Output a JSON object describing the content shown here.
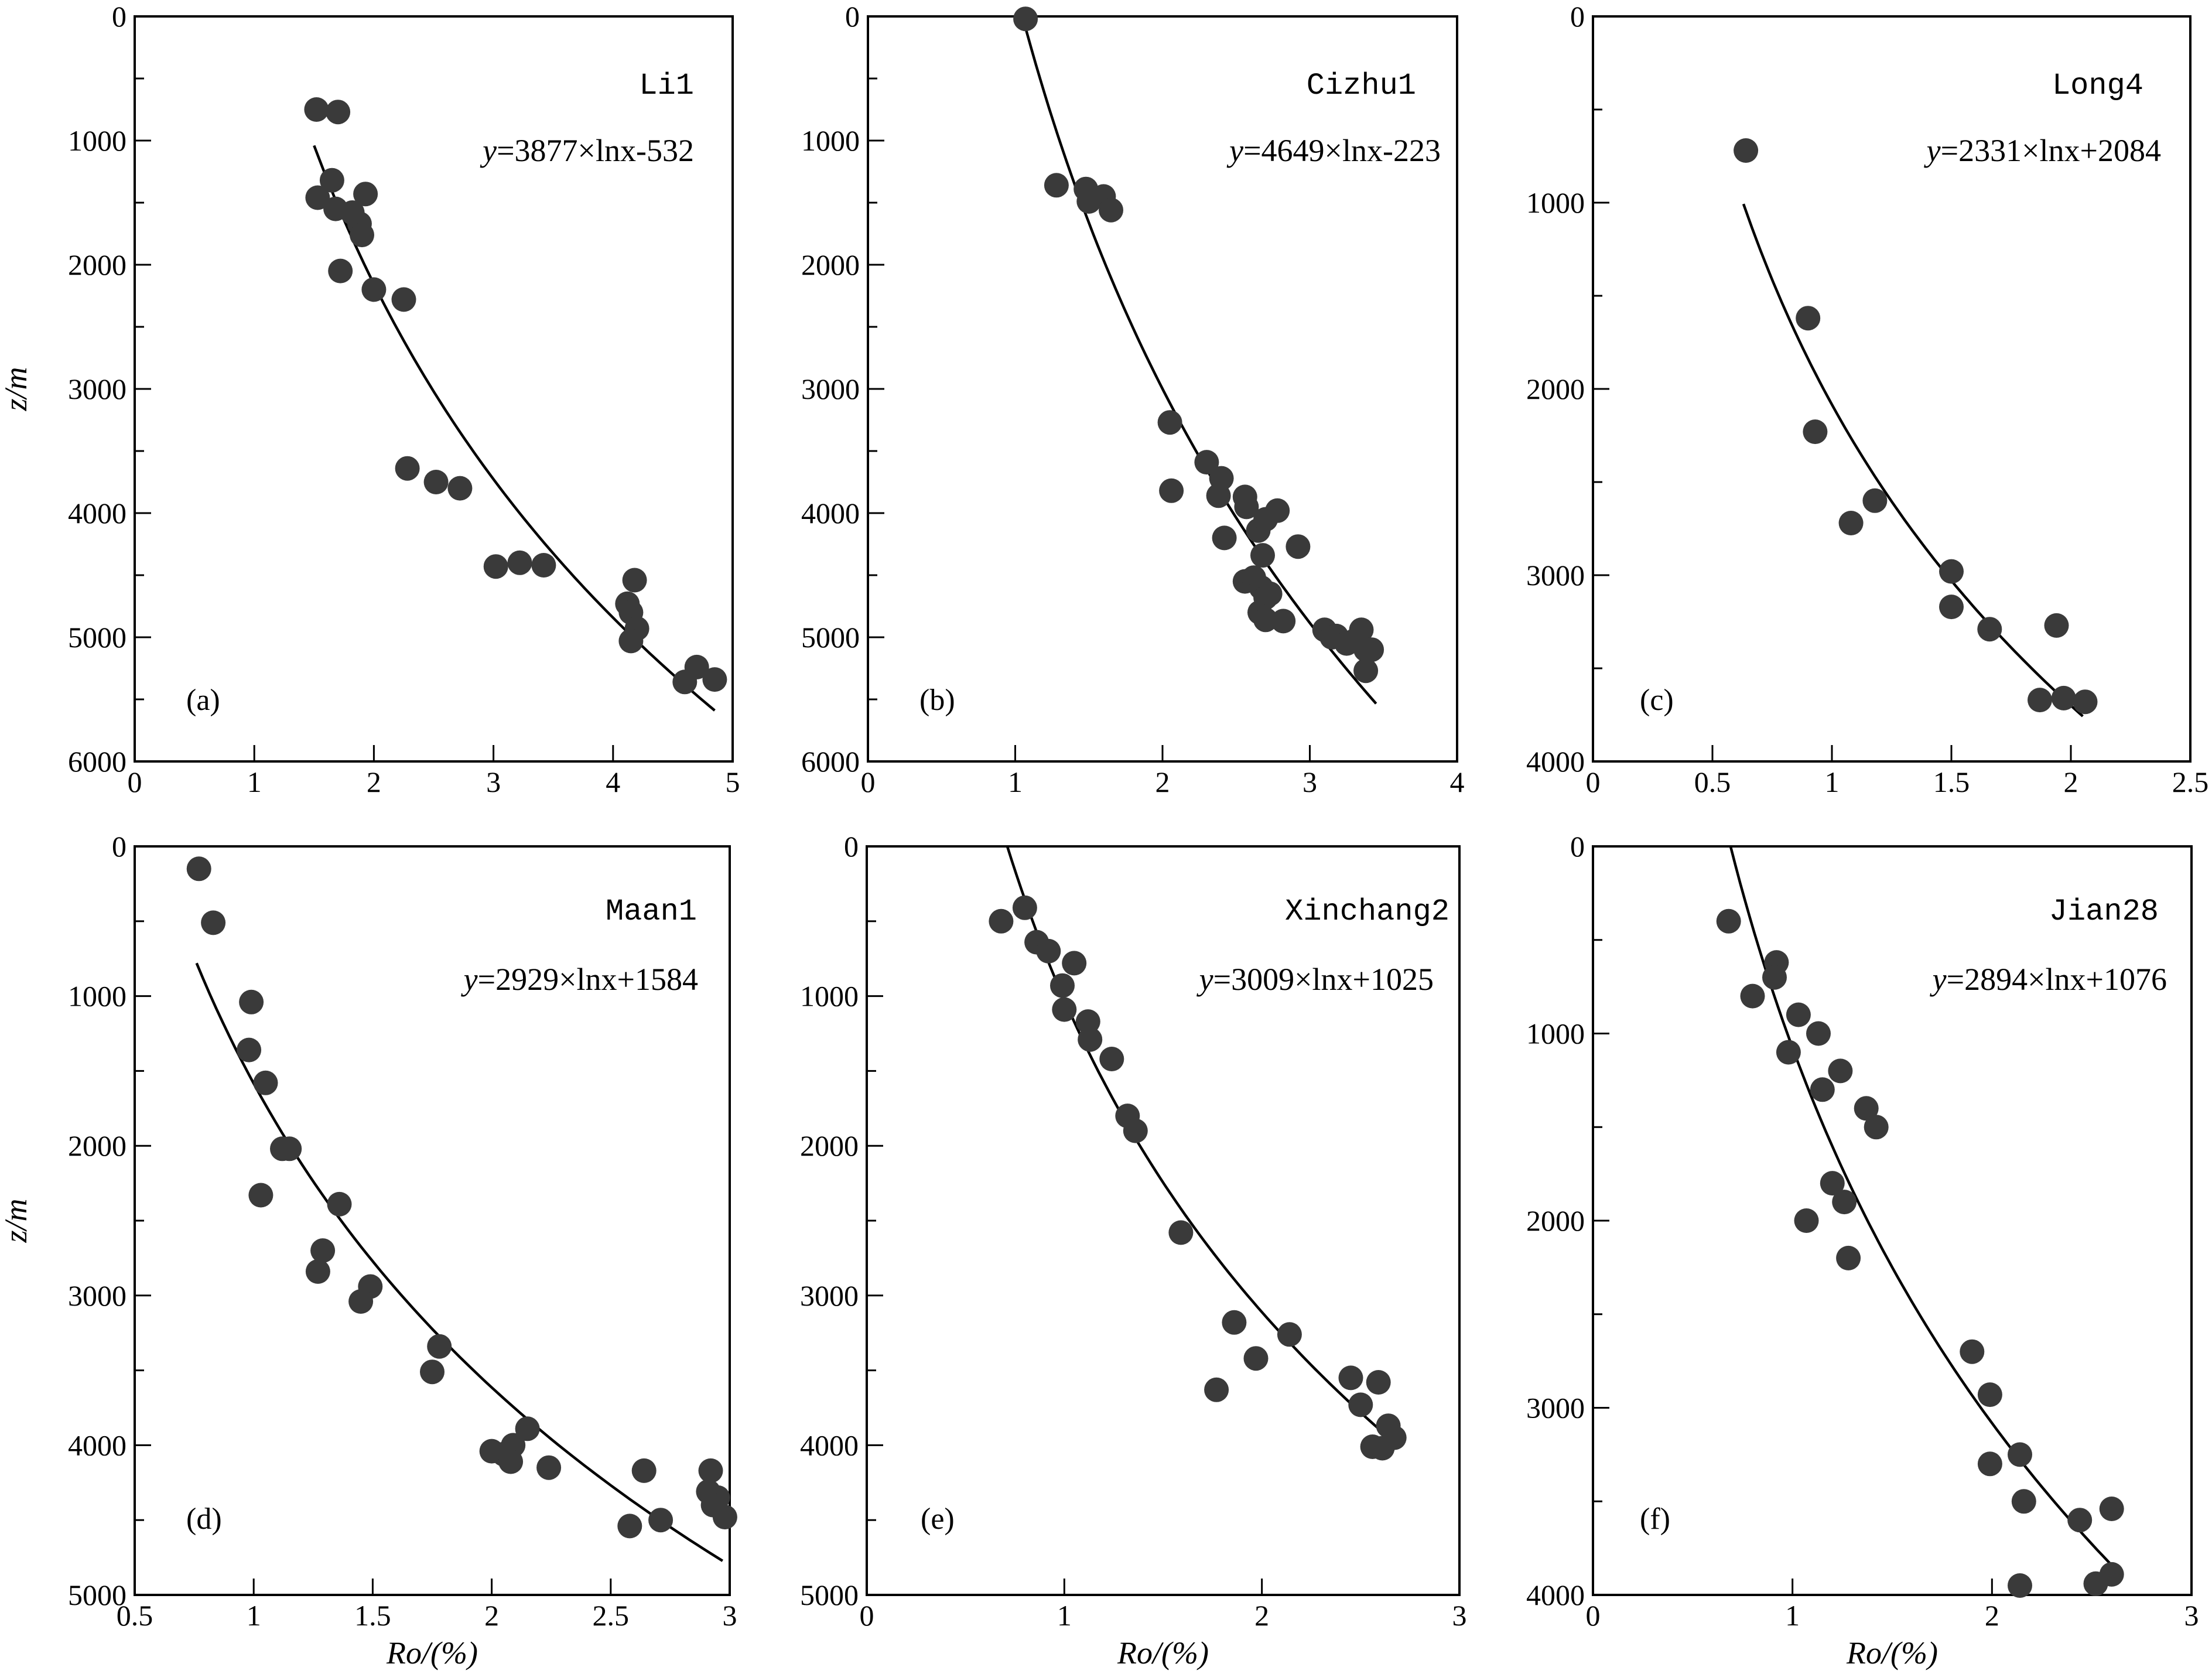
{
  "figure": {
    "x_title": "Ro/(%)",
    "y_title": "z/m"
  },
  "chart_data": [
    {
      "type": "scatter",
      "panel_label": "(a)",
      "well": "Li1",
      "equation": {
        "prefix": "y",
        "text": "=3877×lnx-532"
      },
      "fit": {
        "a": 3877,
        "b": -532,
        "xrange": [
          1.5,
          4.85
        ]
      },
      "xlim": [
        0,
        5
      ],
      "ylim": [
        0,
        6000
      ],
      "xticks": [
        0,
        1,
        2,
        3,
        4,
        5
      ],
      "xtick_labels": [
        "0",
        "1",
        "2",
        "3",
        "4",
        "5"
      ],
      "yticks": [
        0,
        1000,
        2000,
        3000,
        4000,
        5000,
        6000
      ],
      "ytick_labels": [
        "0",
        "1000",
        "2000",
        "3000",
        "4000",
        "5000",
        "6000"
      ],
      "y_minor": 500,
      "xlabel": "",
      "ylabel": "z/m",
      "points": [
        [
          1.52,
          750
        ],
        [
          1.7,
          770
        ],
        [
          1.65,
          1320
        ],
        [
          1.53,
          1460
        ],
        [
          1.68,
          1550
        ],
        [
          1.82,
          1580
        ],
        [
          1.93,
          1430
        ],
        [
          1.88,
          1670
        ],
        [
          1.9,
          1760
        ],
        [
          1.72,
          2050
        ],
        [
          2.0,
          2200
        ],
        [
          2.25,
          2280
        ],
        [
          2.28,
          3640
        ],
        [
          2.52,
          3750
        ],
        [
          2.72,
          3800
        ],
        [
          3.02,
          4430
        ],
        [
          3.22,
          4400
        ],
        [
          3.42,
          4420
        ],
        [
          4.18,
          4540
        ],
        [
          4.12,
          4730
        ],
        [
          4.15,
          4800
        ],
        [
          4.2,
          4930
        ],
        [
          4.15,
          5030
        ],
        [
          4.6,
          5360
        ],
        [
          4.7,
          5240
        ],
        [
          4.85,
          5340
        ]
      ]
    },
    {
      "type": "scatter",
      "panel_label": "(b)",
      "well": "Cizhu1",
      "equation": {
        "prefix": "y",
        "text": "=4649×lnx-223"
      },
      "fit": {
        "a": 4649,
        "b": -223,
        "xrange": [
          1.05,
          3.45
        ]
      },
      "xlim": [
        0,
        4
      ],
      "ylim": [
        0,
        6000
      ],
      "xticks": [
        0,
        1,
        2,
        3,
        4
      ],
      "xtick_labels": [
        "0",
        "1",
        "2",
        "3",
        "4"
      ],
      "yticks": [
        0,
        1000,
        2000,
        3000,
        4000,
        5000,
        6000
      ],
      "ytick_labels": [
        "0",
        "1000",
        "2000",
        "3000",
        "4000",
        "5000",
        "6000"
      ],
      "y_minor": 500,
      "xlabel": "",
      "ylabel": "",
      "points": [
        [
          1.07,
          20
        ],
        [
          1.28,
          1360
        ],
        [
          1.48,
          1390
        ],
        [
          1.5,
          1490
        ],
        [
          1.6,
          1450
        ],
        [
          1.65,
          1560
        ],
        [
          2.05,
          3270
        ],
        [
          2.06,
          3820
        ],
        [
          2.3,
          3590
        ],
        [
          2.38,
          3860
        ],
        [
          2.4,
          3720
        ],
        [
          2.42,
          4200
        ],
        [
          2.56,
          3870
        ],
        [
          2.57,
          3950
        ],
        [
          2.56,
          4550
        ],
        [
          2.62,
          4520
        ],
        [
          2.65,
          4140
        ],
        [
          2.68,
          4340
        ],
        [
          2.7,
          4050
        ],
        [
          2.67,
          4600
        ],
        [
          2.7,
          4680
        ],
        [
          2.66,
          4800
        ],
        [
          2.7,
          4860
        ],
        [
          2.73,
          4650
        ],
        [
          2.78,
          3980
        ],
        [
          2.82,
          4870
        ],
        [
          2.92,
          4270
        ],
        [
          3.1,
          4940
        ],
        [
          3.15,
          5000
        ],
        [
          3.18,
          4990
        ],
        [
          3.25,
          5050
        ],
        [
          3.3,
          5030
        ],
        [
          3.35,
          4940
        ],
        [
          3.38,
          5100
        ],
        [
          3.42,
          5100
        ],
        [
          3.38,
          5270
        ]
      ]
    },
    {
      "type": "scatter",
      "panel_label": "(c)",
      "well": "Long4",
      "equation": {
        "prefix": "y",
        "text": "=2331×lnx+2084"
      },
      "fit": {
        "a": 2331,
        "b": 2084,
        "xrange": [
          0.63,
          2.05
        ]
      },
      "xlim": [
        0,
        2.5
      ],
      "ylim": [
        0,
        4000
      ],
      "xticks": [
        0,
        0.5,
        1,
        1.5,
        2,
        2.5
      ],
      "xtick_labels": [
        "0",
        "0.5",
        "1",
        "1.5",
        "2",
        "2.5"
      ],
      "yticks": [
        0,
        1000,
        2000,
        3000,
        4000
      ],
      "ytick_labels": [
        "0",
        "1000",
        "2000",
        "3000",
        "4000"
      ],
      "y_minor": 500,
      "xlabel": "",
      "ylabel": "",
      "points": [
        [
          0.64,
          720
        ],
        [
          0.9,
          1620
        ],
        [
          0.93,
          2230
        ],
        [
          1.08,
          2720
        ],
        [
          1.18,
          2600
        ],
        [
          1.5,
          2980
        ],
        [
          1.5,
          3170
        ],
        [
          1.66,
          3290
        ],
        [
          1.94,
          3270
        ],
        [
          1.87,
          3670
        ],
        [
          1.97,
          3660
        ],
        [
          2.06,
          3680
        ]
      ]
    },
    {
      "type": "scatter",
      "panel_label": "(d)",
      "well": "Maan1",
      "equation": {
        "prefix": "y",
        "text": "=2929×lnx+1584"
      },
      "fit": {
        "a": 2929,
        "b": 1584,
        "xrange": [
          0.76,
          2.97
        ]
      },
      "xlim": [
        0.5,
        3
      ],
      "ylim": [
        0,
        5000
      ],
      "xticks": [
        0.5,
        1,
        1.5,
        2,
        2.5,
        3
      ],
      "xtick_labels": [
        "0.5",
        "1",
        "1.5",
        "2",
        "2.5",
        "3"
      ],
      "yticks": [
        0,
        1000,
        2000,
        3000,
        4000,
        5000
      ],
      "ytick_labels": [
        "0",
        "1000",
        "2000",
        "3000",
        "4000",
        "5000"
      ],
      "y_minor": 500,
      "xlabel": "Ro/(%)",
      "ylabel": "z/m",
      "points": [
        [
          0.77,
          150
        ],
        [
          0.83,
          510
        ],
        [
          0.99,
          1040
        ],
        [
          0.98,
          1360
        ],
        [
          1.05,
          1580
        ],
        [
          1.12,
          2020
        ],
        [
          1.15,
          2020
        ],
        [
          1.03,
          2330
        ],
        [
          1.36,
          2390
        ],
        [
          1.29,
          2700
        ],
        [
          1.27,
          2840
        ],
        [
          1.49,
          2940
        ],
        [
          1.45,
          3040
        ],
        [
          1.78,
          3340
        ],
        [
          1.75,
          3510
        ],
        [
          2.0,
          4040
        ],
        [
          2.05,
          4060
        ],
        [
          2.09,
          4000
        ],
        [
          2.15,
          3890
        ],
        [
          2.08,
          4110
        ],
        [
          2.24,
          4150
        ],
        [
          2.64,
          4170
        ],
        [
          2.92,
          4170
        ],
        [
          2.58,
          4540
        ],
        [
          2.71,
          4500
        ],
        [
          2.91,
          4310
        ],
        [
          2.95,
          4350
        ],
        [
          2.93,
          4400
        ],
        [
          2.98,
          4480
        ]
      ]
    },
    {
      "type": "scatter",
      "panel_label": "(e)",
      "well": "Xinchang2",
      "equation": {
        "prefix": "y",
        "text": "=3009×lnx+1025"
      },
      "fit": {
        "a": 3009,
        "b": 1025,
        "xrange": [
          0.71,
          2.66
        ]
      },
      "xlim": [
        0,
        3
      ],
      "ylim": [
        0,
        5000
      ],
      "xticks": [
        0,
        1,
        2,
        3
      ],
      "xtick_labels": [
        "0",
        "1",
        "2",
        "3"
      ],
      "yticks": [
        0,
        1000,
        2000,
        3000,
        4000,
        5000
      ],
      "ytick_labels": [
        "0",
        "1000",
        "2000",
        "3000",
        "4000",
        "5000"
      ],
      "y_minor": 500,
      "xlabel": "Ro/(%)",
      "ylabel": "",
      "points": [
        [
          0.68,
          500
        ],
        [
          0.8,
          410
        ],
        [
          0.86,
          640
        ],
        [
          0.92,
          700
        ],
        [
          1.05,
          780
        ],
        [
          0.99,
          930
        ],
        [
          1.0,
          1090
        ],
        [
          1.12,
          1170
        ],
        [
          1.13,
          1290
        ],
        [
          1.24,
          1420
        ],
        [
          1.32,
          1800
        ],
        [
          1.36,
          1900
        ],
        [
          1.59,
          2580
        ],
        [
          1.86,
          3180
        ],
        [
          1.97,
          3420
        ],
        [
          2.14,
          3260
        ],
        [
          1.77,
          3630
        ],
        [
          2.45,
          3550
        ],
        [
          2.59,
          3580
        ],
        [
          2.5,
          3730
        ],
        [
          2.64,
          3870
        ],
        [
          2.67,
          3950
        ],
        [
          2.56,
          4010
        ],
        [
          2.61,
          4020
        ]
      ]
    },
    {
      "type": "scatter",
      "panel_label": "(f)",
      "well": "Jian28",
      "equation": {
        "prefix": "y",
        "text": "=2894×lnx+1076"
      },
      "fit": {
        "a": 2894,
        "b": 1076,
        "xrange": [
          0.69,
          2.6
        ]
      },
      "xlim": [
        0,
        3
      ],
      "ylim": [
        0,
        4000
      ],
      "xticks": [
        0,
        1,
        2,
        3
      ],
      "xtick_labels": [
        "0",
        "1",
        "2",
        "3"
      ],
      "yticks": [
        0,
        1000,
        2000,
        3000,
        4000
      ],
      "ytick_labels": [
        "0",
        "1000",
        "2000",
        "3000",
        "4000"
      ],
      "y_minor": 500,
      "xlabel": "Ro/(%)",
      "ylabel": "",
      "points": [
        [
          0.68,
          400
        ],
        [
          0.92,
          620
        ],
        [
          0.91,
          700
        ],
        [
          0.8,
          800
        ],
        [
          1.03,
          900
        ],
        [
          1.13,
          1000
        ],
        [
          0.98,
          1100
        ],
        [
          1.15,
          1300
        ],
        [
          1.24,
          1200
        ],
        [
          1.37,
          1400
        ],
        [
          1.42,
          1500
        ],
        [
          1.2,
          1800
        ],
        [
          1.26,
          1900
        ],
        [
          1.07,
          2000
        ],
        [
          1.28,
          2200
        ],
        [
          1.9,
          2700
        ],
        [
          1.99,
          2930
        ],
        [
          2.14,
          3250
        ],
        [
          1.99,
          3300
        ],
        [
          2.16,
          3500
        ],
        [
          2.44,
          3600
        ],
        [
          2.6,
          3540
        ],
        [
          2.6,
          3890
        ],
        [
          2.52,
          3940
        ],
        [
          2.14,
          3950
        ]
      ]
    }
  ]
}
